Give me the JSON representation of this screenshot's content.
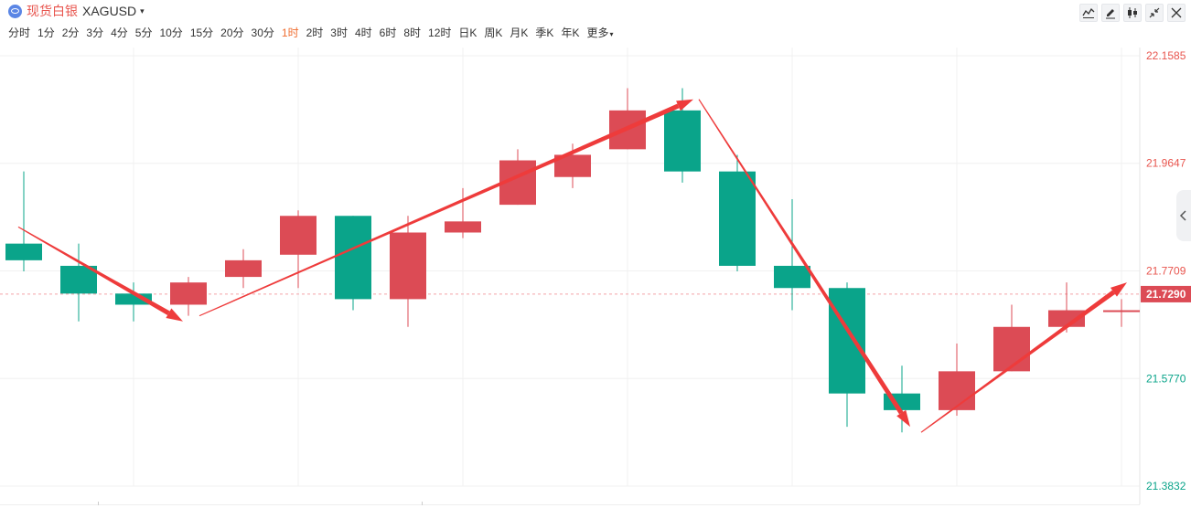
{
  "header": {
    "name": "现货白银",
    "symbol": "XAGUSD",
    "caret": "▾"
  },
  "periods": [
    {
      "label": "分时",
      "active": false
    },
    {
      "label": "1分",
      "active": false
    },
    {
      "label": "2分",
      "active": false
    },
    {
      "label": "3分",
      "active": false
    },
    {
      "label": "4分",
      "active": false
    },
    {
      "label": "5分",
      "active": false
    },
    {
      "label": "10分",
      "active": false
    },
    {
      "label": "15分",
      "active": false
    },
    {
      "label": "20分",
      "active": false
    },
    {
      "label": "30分",
      "active": false
    },
    {
      "label": "1时",
      "active": true
    },
    {
      "label": "2时",
      "active": false
    },
    {
      "label": "3时",
      "active": false
    },
    {
      "label": "4时",
      "active": false
    },
    {
      "label": "6时",
      "active": false
    },
    {
      "label": "8时",
      "active": false
    },
    {
      "label": "12时",
      "active": false
    },
    {
      "label": "日K",
      "active": false
    },
    {
      "label": "周K",
      "active": false
    },
    {
      "label": "月K",
      "active": false
    },
    {
      "label": "季K",
      "active": false
    },
    {
      "label": "年K",
      "active": false
    }
  ],
  "more": {
    "label": "更多",
    "caret": "▾"
  },
  "toolbar": {
    "icons": [
      "line-chart-icon",
      "draw-pen-icon",
      "candlestick-icon",
      "collapse-icon",
      "close-icon"
    ]
  },
  "colors": {
    "up": "#dc4b55",
    "down": "#0aa48a",
    "arrow": "#ee3b3b",
    "active_period": "#ef6c2f",
    "current_price_bg": "#dc4b55",
    "grid": "#f0f0f0"
  },
  "chart_data": {
    "type": "candlestick",
    "ylim": [
      21.3832,
      22.1585
    ],
    "y_ticks": [
      {
        "value": 22.1585,
        "label": "22.1585",
        "color": "#e8554e"
      },
      {
        "value": 21.9647,
        "label": "21.9647",
        "color": "#e8554e"
      },
      {
        "value": 21.7709,
        "label": "21.7709",
        "color": "#e8554e"
      },
      {
        "value": 21.577,
        "label": "21.5770",
        "color": "#0aa48a"
      },
      {
        "value": 21.3832,
        "label": "21.3832",
        "color": "#0aa48a"
      }
    ],
    "current_price": {
      "value": 21.729,
      "label": "21.7290"
    },
    "candles": [
      {
        "open": 21.82,
        "close": 21.79,
        "high": 21.95,
        "low": 21.77
      },
      {
        "open": 21.78,
        "close": 21.73,
        "high": 21.82,
        "low": 21.68
      },
      {
        "open": 21.73,
        "close": 21.71,
        "high": 21.75,
        "low": 21.68
      },
      {
        "open": 21.71,
        "close": 21.75,
        "high": 21.76,
        "low": 21.69
      },
      {
        "open": 21.76,
        "close": 21.79,
        "high": 21.81,
        "low": 21.74
      },
      {
        "open": 21.8,
        "close": 21.87,
        "high": 21.88,
        "low": 21.74
      },
      {
        "open": 21.87,
        "close": 21.72,
        "high": 21.87,
        "low": 21.7
      },
      {
        "open": 21.72,
        "close": 21.84,
        "high": 21.87,
        "low": 21.67
      },
      {
        "open": 21.84,
        "close": 21.86,
        "high": 21.92,
        "low": 21.83
      },
      {
        "open": 21.89,
        "close": 21.97,
        "high": 21.99,
        "low": 21.89
      },
      {
        "open": 21.94,
        "close": 21.98,
        "high": 22.0,
        "low": 21.92
      },
      {
        "open": 21.99,
        "close": 22.06,
        "high": 22.1,
        "low": 21.99
      },
      {
        "open": 22.06,
        "close": 21.95,
        "high": 22.1,
        "low": 21.93
      },
      {
        "open": 21.95,
        "close": 21.78,
        "high": 21.98,
        "low": 21.77
      },
      {
        "open": 21.78,
        "close": 21.74,
        "high": 21.9,
        "low": 21.7
      },
      {
        "open": 21.74,
        "close": 21.55,
        "high": 21.75,
        "low": 21.49
      },
      {
        "open": 21.55,
        "close": 21.52,
        "high": 21.6,
        "low": 21.48
      },
      {
        "open": 21.52,
        "close": 21.59,
        "high": 21.64,
        "low": 21.51
      },
      {
        "open": 21.59,
        "close": 21.67,
        "high": 21.71,
        "low": 21.59
      },
      {
        "open": 21.67,
        "close": 21.7,
        "high": 21.75,
        "low": 21.66
      },
      {
        "open": 21.7,
        "close": 21.7,
        "high": 21.72,
        "low": 21.67
      }
    ],
    "annotations": [
      {
        "type": "arrow",
        "from": {
          "i": -0.1,
          "y": 21.85
        },
        "to": {
          "i": 2.9,
          "y": 21.68
        },
        "heavy": true
      },
      {
        "type": "arrow",
        "from": {
          "i": 3.2,
          "y": 21.69
        },
        "to": {
          "i": 12.2,
          "y": 22.08
        },
        "heavy": true
      },
      {
        "type": "arrow",
        "from": {
          "i": 12.3,
          "y": 22.08
        },
        "to": {
          "i": 16.15,
          "y": 21.49
        },
        "heavy": true
      },
      {
        "type": "arrow",
        "from": {
          "i": 16.35,
          "y": 21.48
        },
        "to": {
          "i": 20.1,
          "y": 21.75
        },
        "heavy": true
      }
    ]
  }
}
